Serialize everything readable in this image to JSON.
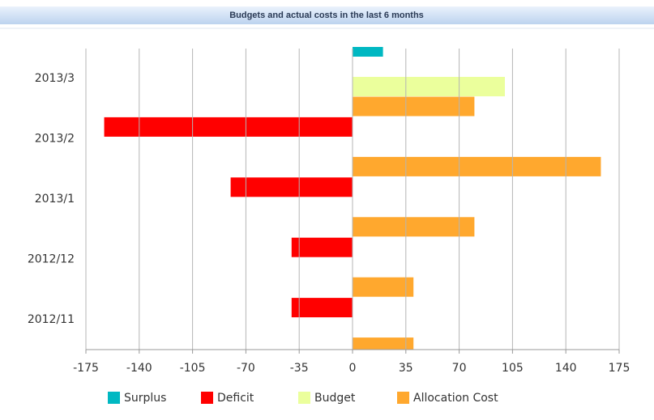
{
  "chart_data": {
    "type": "bar",
    "orientation": "horizontal",
    "title": "Budgets and actual costs in the last 6 months",
    "categories": [
      "2013/3",
      "2013/2",
      "2013/1",
      "2012/12",
      "2012/11"
    ],
    "series": [
      {
        "name": "Surplus",
        "color": "#00b8c2",
        "values": [
          20,
          null,
          null,
          null,
          null
        ]
      },
      {
        "name": "Deficit",
        "color": "#ff0000",
        "values": [
          null,
          -163,
          -80,
          -40,
          -40
        ]
      },
      {
        "name": "Budget",
        "color": "#ebff9c",
        "values": [
          100,
          null,
          null,
          null,
          null
        ]
      },
      {
        "name": "Allocation Cost",
        "color": "#ffa82e",
        "values": [
          80,
          163,
          80,
          40,
          40
        ]
      }
    ],
    "xlim": [
      -175,
      175
    ],
    "xticks": [
      -175,
      -140,
      -105,
      -70,
      -35,
      0,
      35,
      70,
      105,
      140,
      175
    ],
    "grid": true,
    "legend": "bottom"
  }
}
